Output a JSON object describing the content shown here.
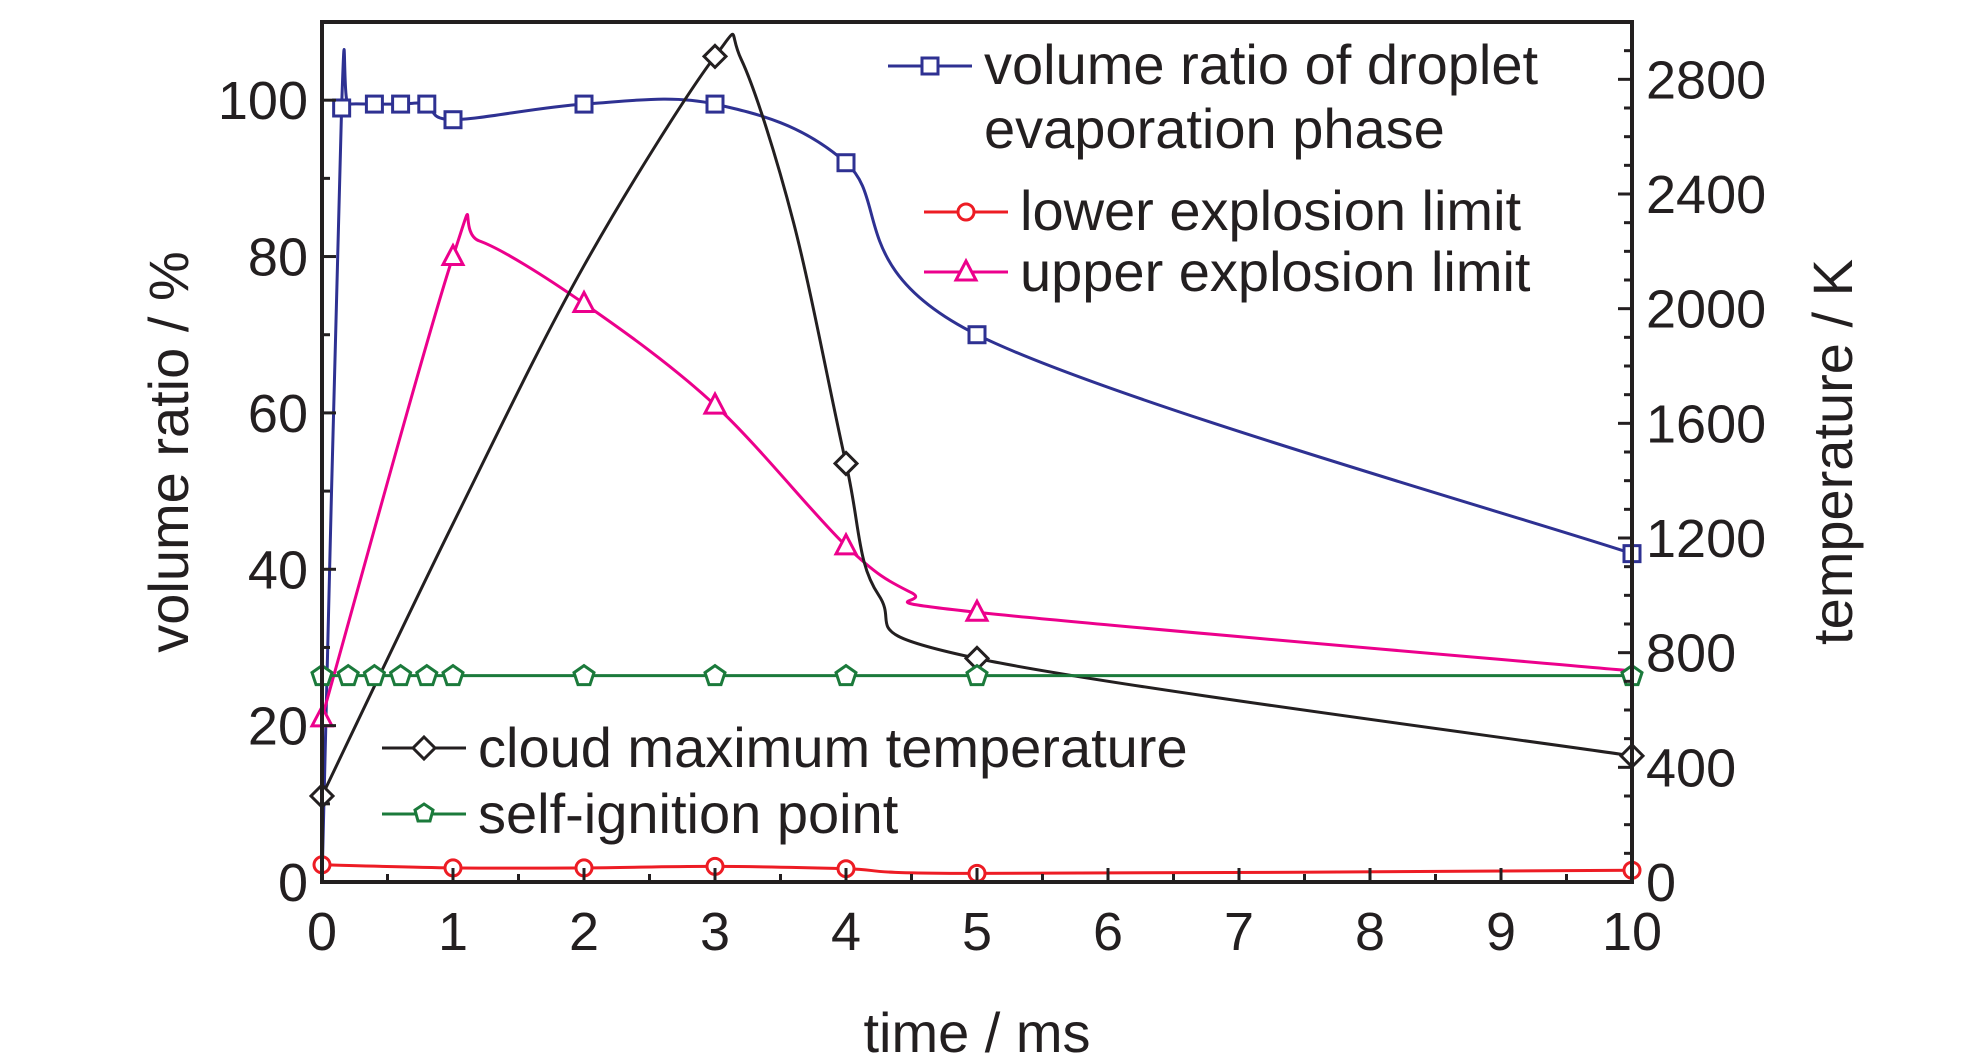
{
  "chart_data": {
    "type": "line",
    "xlabel": "time / ms",
    "ylabel_left": "volume ratio / %",
    "ylabel_right": "temperature / K",
    "xlim": [
      0,
      10
    ],
    "ylim_left": [
      0,
      110
    ],
    "ylim_right": [
      0,
      3000
    ],
    "x_ticks": [
      "0",
      "1",
      "2",
      "3",
      "4",
      "5",
      "6",
      "7",
      "8",
      "9",
      "10"
    ],
    "y_left_ticks": [
      "0",
      "20",
      "40",
      "60",
      "80",
      "100"
    ],
    "y_right_ticks": [
      "0",
      "400",
      "800",
      "1200",
      "1600",
      "2000",
      "2400",
      "2800"
    ],
    "grid": false,
    "series": [
      {
        "name": "volume ratio of droplet evaporation phase",
        "axis": "left",
        "color": "#2e3192",
        "marker": "square",
        "x": [
          0,
          0.15,
          0.2,
          0.4,
          0.6,
          0.8,
          1,
          2,
          3,
          4,
          5,
          10
        ],
        "y": [
          0,
          99,
          99.5,
          99.5,
          99.5,
          99.5,
          97.5,
          99.5,
          99.5,
          92,
          70,
          42
        ],
        "markers_at": [
          0.15,
          0.4,
          0.6,
          0.8,
          1,
          2,
          3,
          4,
          5,
          10
        ]
      },
      {
        "name": "lower explosion limit",
        "axis": "left",
        "color": "#ed1c24",
        "marker": "circle",
        "x": [
          0,
          1,
          2,
          3,
          4,
          5,
          10
        ],
        "y": [
          2.2,
          1.8,
          1.8,
          2.0,
          1.7,
          1.1,
          1.5
        ],
        "markers_at": [
          0,
          1,
          2,
          3,
          4,
          5,
          10
        ]
      },
      {
        "name": "upper explosion limit",
        "axis": "left",
        "color": "#ec008c",
        "marker": "triangle",
        "x": [
          0,
          1,
          1.2,
          2,
          3,
          4,
          4.5,
          5,
          10
        ],
        "y": [
          21,
          80,
          82,
          74,
          61,
          43,
          37,
          34.5,
          27
        ],
        "markers_at": [
          0,
          1,
          2,
          3,
          4,
          5
        ]
      },
      {
        "name": "cloud maximum temperature",
        "axis": "right",
        "color": "#231f20",
        "marker": "diamond",
        "x": [
          0,
          1,
          2,
          3,
          3.2,
          3.6,
          4,
          4.25,
          5,
          10
        ],
        "y": [
          300,
          1250,
          2150,
          2880,
          2870,
          2300,
          1460,
          1000,
          780,
          440
        ],
        "markers_at": [
          0,
          3,
          4,
          5,
          10
        ]
      },
      {
        "name": "self-ignition point",
        "axis": "right",
        "color": "#1b7a3b",
        "marker": "pentagon",
        "x": [
          0,
          10
        ],
        "y": [
          720,
          720
        ],
        "markers_at": [
          0,
          0.2,
          0.4,
          0.6,
          0.8,
          1,
          2,
          3,
          4,
          5,
          10
        ]
      }
    ],
    "legend_upper": [
      "volume ratio of droplet",
      "evaporation phase",
      "lower explosion limit",
      "upper explosion limit"
    ],
    "legend_lower": [
      "cloud maximum temperature",
      "self-ignition point"
    ],
    "legend_placement": "top-right and bottom-left"
  }
}
